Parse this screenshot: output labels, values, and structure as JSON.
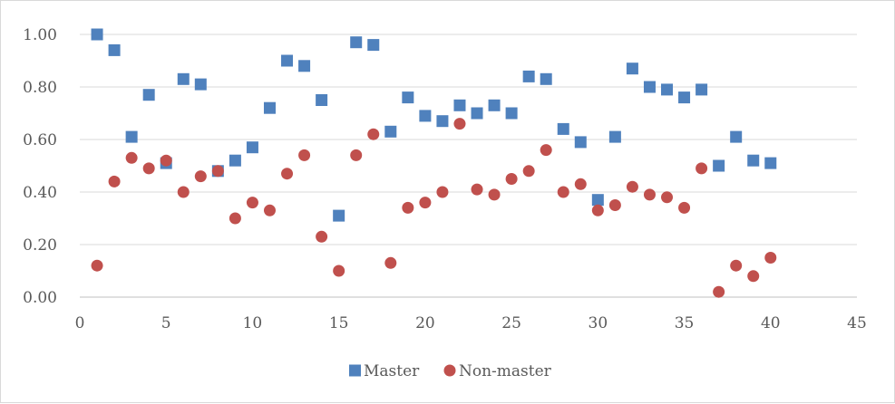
{
  "chart_data": {
    "type": "scatter",
    "title": "",
    "xlabel": "",
    "ylabel": "",
    "xlim": [
      0,
      45
    ],
    "ylim": [
      0,
      1
    ],
    "x_ticks": [
      "0",
      "5",
      "10",
      "15",
      "20",
      "25",
      "30",
      "35",
      "40",
      "45"
    ],
    "y_ticks": [
      "0.00",
      "0.20",
      "0.40",
      "0.60",
      "0.80",
      "1.00"
    ],
    "grid": "horizontal",
    "legend_position": "bottom",
    "series": [
      {
        "name": "Master",
        "marker": "square",
        "color": "#4f81bd",
        "points": [
          {
            "x": 1,
            "y": 1.0
          },
          {
            "x": 2,
            "y": 0.94
          },
          {
            "x": 3,
            "y": 0.61
          },
          {
            "x": 4,
            "y": 0.77
          },
          {
            "x": 5,
            "y": 0.51
          },
          {
            "x": 6,
            "y": 0.83
          },
          {
            "x": 7,
            "y": 0.81
          },
          {
            "x": 8,
            "y": 0.48
          },
          {
            "x": 9,
            "y": 0.52
          },
          {
            "x": 10,
            "y": 0.57
          },
          {
            "x": 11,
            "y": 0.72
          },
          {
            "x": 12,
            "y": 0.9
          },
          {
            "x": 13,
            "y": 0.88
          },
          {
            "x": 14,
            "y": 0.75
          },
          {
            "x": 15,
            "y": 0.31
          },
          {
            "x": 16,
            "y": 0.97
          },
          {
            "x": 17,
            "y": 0.96
          },
          {
            "x": 18,
            "y": 0.63
          },
          {
            "x": 19,
            "y": 0.76
          },
          {
            "x": 20,
            "y": 0.69
          },
          {
            "x": 21,
            "y": 0.67
          },
          {
            "x": 22,
            "y": 0.73
          },
          {
            "x": 23,
            "y": 0.7
          },
          {
            "x": 24,
            "y": 0.73
          },
          {
            "x": 25,
            "y": 0.7
          },
          {
            "x": 26,
            "y": 0.84
          },
          {
            "x": 27,
            "y": 0.83
          },
          {
            "x": 28,
            "y": 0.64
          },
          {
            "x": 29,
            "y": 0.59
          },
          {
            "x": 30,
            "y": 0.37
          },
          {
            "x": 31,
            "y": 0.61
          },
          {
            "x": 32,
            "y": 0.87
          },
          {
            "x": 33,
            "y": 0.8
          },
          {
            "x": 34,
            "y": 0.79
          },
          {
            "x": 35,
            "y": 0.76
          },
          {
            "x": 36,
            "y": 0.79
          },
          {
            "x": 37,
            "y": 0.5
          },
          {
            "x": 38,
            "y": 0.61
          },
          {
            "x": 39,
            "y": 0.52
          },
          {
            "x": 40,
            "y": 0.51
          }
        ]
      },
      {
        "name": "Non-master",
        "marker": "circle",
        "color": "#c0504d",
        "points": [
          {
            "x": 1,
            "y": 0.12
          },
          {
            "x": 2,
            "y": 0.44
          },
          {
            "x": 3,
            "y": 0.53
          },
          {
            "x": 4,
            "y": 0.49
          },
          {
            "x": 5,
            "y": 0.52
          },
          {
            "x": 6,
            "y": 0.4
          },
          {
            "x": 7,
            "y": 0.46
          },
          {
            "x": 8,
            "y": 0.48
          },
          {
            "x": 9,
            "y": 0.3
          },
          {
            "x": 10,
            "y": 0.36
          },
          {
            "x": 11,
            "y": 0.33
          },
          {
            "x": 12,
            "y": 0.47
          },
          {
            "x": 13,
            "y": 0.54
          },
          {
            "x": 14,
            "y": 0.23
          },
          {
            "x": 15,
            "y": 0.1
          },
          {
            "x": 16,
            "y": 0.54
          },
          {
            "x": 17,
            "y": 0.62
          },
          {
            "x": 18,
            "y": 0.13
          },
          {
            "x": 19,
            "y": 0.34
          },
          {
            "x": 20,
            "y": 0.36
          },
          {
            "x": 21,
            "y": 0.4
          },
          {
            "x": 22,
            "y": 0.66
          },
          {
            "x": 23,
            "y": 0.41
          },
          {
            "x": 24,
            "y": 0.39
          },
          {
            "x": 25,
            "y": 0.45
          },
          {
            "x": 26,
            "y": 0.48
          },
          {
            "x": 27,
            "y": 0.56
          },
          {
            "x": 28,
            "y": 0.4
          },
          {
            "x": 29,
            "y": 0.43
          },
          {
            "x": 30,
            "y": 0.33
          },
          {
            "x": 31,
            "y": 0.35
          },
          {
            "x": 32,
            "y": 0.42
          },
          {
            "x": 33,
            "y": 0.39
          },
          {
            "x": 34,
            "y": 0.38
          },
          {
            "x": 35,
            "y": 0.34
          },
          {
            "x": 36,
            "y": 0.49
          },
          {
            "x": 37,
            "y": 0.02
          },
          {
            "x": 38,
            "y": 0.12
          },
          {
            "x": 39,
            "y": 0.08
          },
          {
            "x": 40,
            "y": 0.15
          }
        ]
      }
    ]
  }
}
